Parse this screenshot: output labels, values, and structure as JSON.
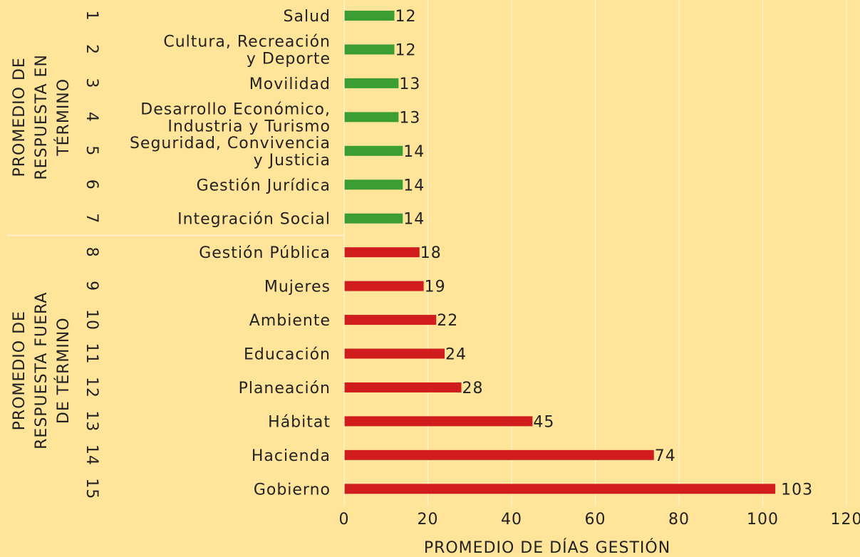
{
  "chart_data": {
    "type": "bar",
    "orientation": "horizontal",
    "x_label": "PROMEDIO  DE DÍAS GESTIÓN",
    "xlim": [
      0,
      120
    ],
    "xticks": [
      0,
      20,
      40,
      60,
      80,
      100,
      120
    ],
    "grid": true,
    "series": [
      {
        "name": [
          "PROMEDIO DE",
          "RESPUESTA EN",
          "TÉRMINO"
        ],
        "color": "#3a9e35",
        "ranks": [
          1,
          2,
          3,
          4,
          5,
          6,
          7
        ],
        "categories": [
          [
            "Salud"
          ],
          [
            "Cultura, Recreación",
            "y Deporte"
          ],
          [
            "Movilidad"
          ],
          [
            "Desarrollo Económico,",
            "Industria y Turismo"
          ],
          [
            "Seguridad, Convivencia",
            "y Justicia"
          ],
          [
            "Gestión Jurídica"
          ],
          [
            "Integración Social"
          ]
        ],
        "values": [
          12,
          12,
          13,
          13,
          14,
          14,
          14
        ]
      },
      {
        "name": [
          "PROMEDIO DE",
          "RESPUESTA FUERA",
          "DE TÉRMINO"
        ],
        "color": "#d01c1c",
        "ranks": [
          8,
          9,
          10,
          11,
          12,
          13,
          14,
          15
        ],
        "categories": [
          [
            "Gestión Pública"
          ],
          [
            "Mujeres"
          ],
          [
            "Ambiente"
          ],
          [
            "Educación"
          ],
          [
            "Planeación"
          ],
          [
            "Hábitat"
          ],
          [
            "Hacienda"
          ],
          [
            "Gobierno"
          ]
        ],
        "values": [
          18,
          19,
          22,
          24,
          28,
          45,
          74,
          103
        ]
      }
    ]
  }
}
